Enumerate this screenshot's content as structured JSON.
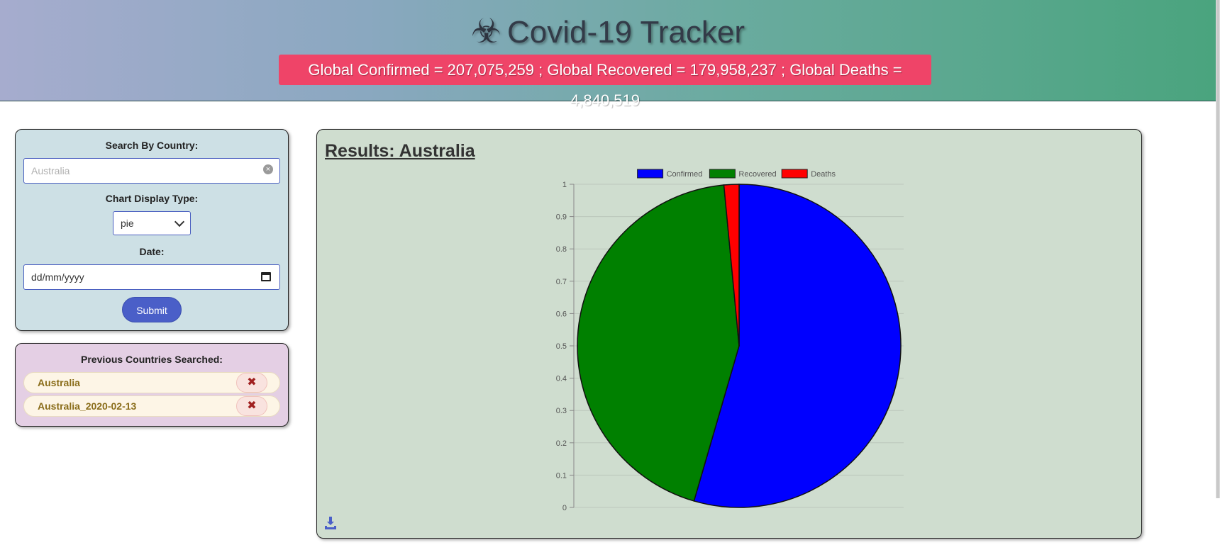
{
  "header": {
    "title": "Covid-19 Tracker",
    "title_icon": "biohazard-icon",
    "global_stats": "Global Confirmed = 207,075,259 ; Global Recovered = 179,958,237 ; Global Deaths = 4,840,519"
  },
  "search": {
    "country_label": "Search By Country:",
    "country_placeholder": "Australia",
    "country_value": "",
    "chart_type_label": "Chart Display Type:",
    "chart_type_value": "pie",
    "date_label": "Date:",
    "date_placeholder": "dd/mm/yyyy",
    "submit_label": "Submit"
  },
  "previous": {
    "title": "Previous Countries Searched:",
    "items": [
      {
        "label": "Australia",
        "remove": "✖"
      },
      {
        "label": "Australia_2020-02-13",
        "remove": "✖"
      }
    ]
  },
  "results": {
    "title": "Results: Australia"
  },
  "colors": {
    "confirmed": "#0000ff",
    "recovered": "#008000",
    "deaths": "#ff0000",
    "stats_bg": "#ef4468",
    "submit_bg": "#4a5fc8"
  },
  "chart_data": {
    "type": "pie",
    "series": [
      {
        "name": "Confirmed",
        "value": 54.5,
        "color": "#0000ff"
      },
      {
        "name": "Recovered",
        "value": 44.0,
        "color": "#008000"
      },
      {
        "name": "Deaths",
        "value": 1.5,
        "color": "#ff0000"
      }
    ],
    "y_ticks": [
      "0",
      "0.1",
      "0.2",
      "0.3",
      "0.4",
      "0.5",
      "0.6",
      "0.7",
      "0.8",
      "0.9",
      "1"
    ],
    "ylim": [
      0,
      1
    ],
    "legend_position": "top",
    "grid": true
  }
}
